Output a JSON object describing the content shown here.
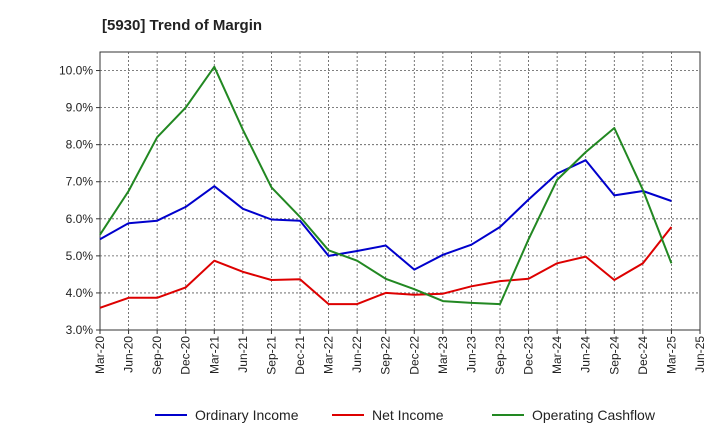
{
  "chart_data": {
    "type": "line",
    "title": "[5930]  Trend of Margin",
    "xlabel": "",
    "ylabel": "",
    "x": [
      "Mar-20",
      "Jun-20",
      "Sep-20",
      "Dec-20",
      "Mar-21",
      "Jun-21",
      "Sep-21",
      "Dec-21",
      "Mar-22",
      "Jun-22",
      "Sep-22",
      "Dec-22",
      "Mar-23",
      "Jun-23",
      "Sep-23",
      "Dec-23",
      "Mar-24",
      "Jun-24",
      "Sep-24",
      "Dec-24",
      "Mar-25",
      "Jun-25"
    ],
    "ylim": [
      3.0,
      10.5
    ],
    "yticks": [
      3.0,
      4.0,
      5.0,
      6.0,
      7.0,
      8.0,
      9.0,
      10.0
    ],
    "ytick_labels": [
      "3.0%",
      "4.0%",
      "5.0%",
      "6.0%",
      "7.0%",
      "8.0%",
      "9.0%",
      "10.0%"
    ],
    "grid": true,
    "legend_position": "bottom",
    "series": [
      {
        "name": "Ordinary Income",
        "color": "#0000cc",
        "values": [
          5.45,
          5.88,
          5.95,
          6.32,
          6.88,
          6.27,
          5.98,
          5.95,
          5.0,
          5.13,
          5.28,
          4.63,
          5.03,
          5.3,
          5.78,
          6.52,
          7.22,
          7.58,
          6.63,
          6.75,
          6.48,
          null
        ]
      },
      {
        "name": "Net Income",
        "color": "#dd0000",
        "values": [
          3.6,
          3.87,
          3.87,
          4.15,
          4.87,
          4.57,
          4.35,
          4.37,
          3.7,
          3.7,
          4.0,
          3.95,
          3.98,
          4.18,
          4.32,
          4.38,
          4.8,
          4.98,
          4.35,
          4.8,
          5.78,
          null
        ]
      },
      {
        "name": "Operating Cashflow",
        "color": "#228822",
        "values": [
          5.57,
          6.75,
          8.2,
          9.0,
          10.1,
          8.4,
          6.85,
          6.05,
          5.15,
          4.87,
          4.38,
          4.1,
          3.78,
          3.73,
          3.7,
          5.45,
          7.05,
          7.8,
          8.45,
          6.78,
          4.8,
          null
        ]
      }
    ]
  }
}
